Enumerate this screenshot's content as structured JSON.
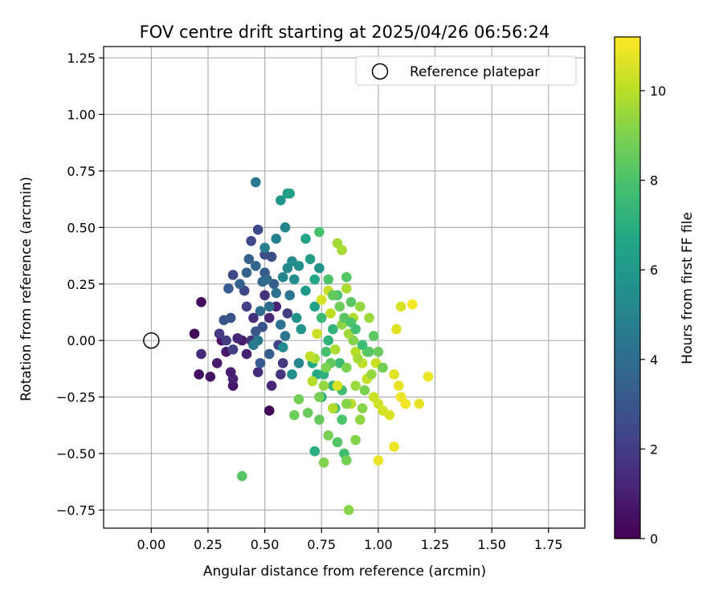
{
  "chart_data": {
    "type": "scatter",
    "title": "FOV centre drift starting at 2025/04/26 06:56:24",
    "xlabel": "Angular distance from reference (arcmin)",
    "ylabel": "Rotation from reference (arcmin)",
    "xlim": [
      -0.21,
      1.91
    ],
    "ylim": [
      -0.83,
      1.3
    ],
    "xticks": [
      0.0,
      0.25,
      0.5,
      0.75,
      1.0,
      1.25,
      1.5,
      1.75
    ],
    "xtick_labels": [
      "0.00",
      "0.25",
      "0.50",
      "0.75",
      "1.00",
      "1.25",
      "1.50",
      "1.75"
    ],
    "yticks": [
      -0.75,
      -0.5,
      -0.25,
      0.0,
      0.25,
      0.5,
      0.75,
      1.0,
      1.25
    ],
    "ytick_labels": [
      "−0.75",
      "−0.50",
      "−0.25",
      "0.00",
      "0.25",
      "0.50",
      "0.75",
      "1.00",
      "1.25"
    ],
    "grid": true,
    "legend": {
      "position": "upper-right",
      "entries": [
        "Reference platepar"
      ]
    },
    "reference_point": {
      "x": 0.0,
      "y": 0.0
    },
    "colorbar": {
      "label": "Hours from first FF file",
      "range": [
        0,
        11.2
      ],
      "ticks": [
        0,
        2,
        4,
        6,
        8,
        10
      ],
      "tick_labels": [
        "0",
        "2",
        "4",
        "6",
        "8",
        "10"
      ],
      "colormap": "viridis"
    },
    "points": [
      [
        0.52,
        -0.31,
        0.1
      ],
      [
        0.19,
        0.03,
        0.2
      ],
      [
        0.22,
        0.17,
        0.3
      ],
      [
        0.21,
        -0.15,
        0.4
      ],
      [
        0.26,
        -0.16,
        0.6
      ],
      [
        0.29,
        -0.1,
        0.8
      ],
      [
        0.31,
        0.0,
        0.5
      ],
      [
        0.33,
        -0.05,
        0.7
      ],
      [
        0.35,
        -0.14,
        0.9
      ],
      [
        0.36,
        -0.2,
        0.6
      ],
      [
        0.4,
        0.0,
        0.8
      ],
      [
        0.42,
        -0.06,
        1.0
      ],
      [
        0.38,
        0.01,
        1.2
      ],
      [
        0.36,
        -0.17,
        1.1
      ],
      [
        0.22,
        -0.06,
        1.3
      ],
      [
        0.47,
        -0.14,
        1.4
      ],
      [
        0.45,
        0.1,
        1.5
      ],
      [
        0.52,
        0.1,
        1.3
      ],
      [
        0.5,
        0.2,
        1.6
      ],
      [
        0.55,
        0.15,
        1.1
      ],
      [
        0.57,
        -0.15,
        1.7
      ],
      [
        0.53,
        -0.2,
        1.2
      ],
      [
        0.44,
        0.0,
        1.8
      ],
      [
        0.3,
        0.03,
        1.9
      ],
      [
        0.33,
        0.0,
        2.0
      ],
      [
        0.36,
        -0.04,
        2.1
      ],
      [
        0.42,
        0.15,
        2.2
      ],
      [
        0.41,
        0.22,
        2.3
      ],
      [
        0.44,
        0.44,
        2.4
      ],
      [
        0.47,
        0.49,
        2.5
      ],
      [
        0.5,
        0.38,
        2.6
      ],
      [
        0.53,
        0.37,
        2.7
      ],
      [
        0.36,
        0.29,
        2.5
      ],
      [
        0.35,
        0.1,
        2.8
      ],
      [
        0.49,
        0.06,
        2.9
      ],
      [
        0.46,
        0.04,
        3.0
      ],
      [
        0.48,
        -0.1,
        3.1
      ],
      [
        0.5,
        0.3,
        3.2
      ],
      [
        0.52,
        -0.06,
        3.3
      ],
      [
        0.54,
        0.25,
        3.4
      ],
      [
        0.56,
        -0.02,
        2.2
      ],
      [
        0.58,
        -0.1,
        1.9
      ],
      [
        0.6,
        0.12,
        2.0
      ],
      [
        0.32,
        0.09,
        3.0
      ],
      [
        0.34,
        0.23,
        3.2
      ],
      [
        0.39,
        0.25,
        3.5
      ],
      [
        0.42,
        0.3,
        3.6
      ],
      [
        0.43,
        0.36,
        3.4
      ],
      [
        0.46,
        0.33,
        3.7
      ],
      [
        0.49,
        0.26,
        3.8
      ],
      [
        0.51,
        0.27,
        3.9
      ],
      [
        0.52,
        0.15,
        4.0
      ],
      [
        0.55,
        0.21,
        4.1
      ],
      [
        0.57,
        0.07,
        4.2
      ],
      [
        0.59,
        0.02,
        4.3
      ],
      [
        0.61,
        0.2,
        4.4
      ],
      [
        0.47,
        0.0,
        4.5
      ],
      [
        0.45,
        -0.02,
        4.6
      ],
      [
        0.48,
        0.13,
        4.0
      ],
      [
        0.5,
        0.41,
        4.7
      ],
      [
        0.46,
        0.7,
        4.5
      ],
      [
        0.55,
        0.45,
        4.8
      ],
      [
        0.59,
        0.5,
        5.0
      ],
      [
        0.58,
        0.28,
        5.1
      ],
      [
        0.6,
        0.32,
        5.2
      ],
      [
        0.62,
        0.35,
        5.3
      ],
      [
        0.63,
        0.27,
        5.4
      ],
      [
        0.65,
        0.33,
        5.5
      ],
      [
        0.64,
        0.1,
        5.6
      ],
      [
        0.66,
        0.05,
        5.8
      ],
      [
        0.68,
        0.22,
        6.0
      ],
      [
        0.7,
        0.36,
        6.2
      ],
      [
        0.72,
        0.15,
        6.4
      ],
      [
        0.57,
        0.62,
        5.9
      ],
      [
        0.6,
        0.65,
        6.1
      ],
      [
        0.61,
        0.65,
        6.3
      ],
      [
        0.68,
        0.45,
        6.5
      ],
      [
        0.72,
        0.27,
        6.6
      ],
      [
        0.74,
        0.32,
        5.7
      ],
      [
        0.62,
        -0.15,
        5.5
      ],
      [
        0.58,
        -0.03,
        5.3
      ],
      [
        0.65,
        -0.1,
        5.0
      ],
      [
        0.71,
        -0.1,
        6.7
      ],
      [
        0.73,
        -0.15,
        6.8
      ],
      [
        0.75,
        -0.25,
        6.9
      ],
      [
        0.72,
        -0.49,
        7.0
      ],
      [
        0.76,
        -0.15,
        7.1
      ],
      [
        0.78,
        0.0,
        7.2
      ],
      [
        0.8,
        0.05,
        7.3
      ],
      [
        0.8,
        -0.2,
        7.4
      ],
      [
        0.81,
        -0.3,
        7.5
      ],
      [
        0.83,
        -0.1,
        7.6
      ],
      [
        0.84,
        -0.22,
        7.7
      ],
      [
        0.85,
        -0.5,
        7.8
      ],
      [
        0.74,
        0.48,
        7.9
      ],
      [
        0.78,
        0.27,
        8.0
      ],
      [
        0.82,
        0.2,
        8.1
      ],
      [
        0.86,
        0.28,
        8.2
      ],
      [
        0.88,
        0.17,
        8.3
      ],
      [
        0.75,
        0.1,
        7.5
      ],
      [
        0.77,
        -0.05,
        7.9
      ],
      [
        0.79,
        -0.1,
        8.4
      ],
      [
        0.74,
        -0.35,
        8.5
      ],
      [
        0.69,
        -0.32,
        8.6
      ],
      [
        0.63,
        -0.33,
        8.7
      ],
      [
        0.65,
        -0.26,
        8.8
      ],
      [
        0.78,
        -0.42,
        8.9
      ],
      [
        0.76,
        -0.54,
        9.0
      ],
      [
        0.4,
        -0.6,
        8.2
      ],
      [
        0.87,
        -0.75,
        9.2
      ],
      [
        0.92,
        -0.35,
        9.3
      ],
      [
        0.92,
        0.15,
        9.4
      ],
      [
        0.96,
        0.1,
        9.5
      ],
      [
        0.82,
        0.43,
        9.6
      ],
      [
        0.84,
        0.4,
        9.7
      ],
      [
        0.86,
        0.23,
        9.8
      ],
      [
        0.89,
        0.1,
        9.9
      ],
      [
        0.9,
        -0.05,
        10.0
      ],
      [
        0.93,
        -0.1,
        10.1
      ],
      [
        0.95,
        -0.17,
        10.2
      ],
      [
        0.98,
        -0.25,
        10.3
      ],
      [
        1.0,
        -0.28,
        10.4
      ],
      [
        1.02,
        -0.31,
        10.5
      ],
      [
        1.05,
        -0.33,
        10.6
      ],
      [
        1.07,
        -0.15,
        10.7
      ],
      [
        1.09,
        -0.2,
        10.8
      ],
      [
        1.1,
        -0.25,
        10.9
      ],
      [
        1.12,
        -0.28,
        11.0
      ],
      [
        1.15,
        0.16,
        11.1
      ],
      [
        1.18,
        -0.28,
        10.8
      ],
      [
        1.22,
        -0.16,
        10.9
      ],
      [
        1.08,
        0.05,
        10.7
      ],
      [
        1.1,
        0.15,
        10.5
      ],
      [
        0.99,
        -0.1,
        10.3
      ],
      [
        1.0,
        -0.53,
        10.9
      ],
      [
        1.07,
        -0.47,
        10.9
      ],
      [
        0.82,
        -0.2,
        10.6
      ],
      [
        0.8,
        -0.3,
        9.9
      ],
      [
        0.86,
        -0.12,
        9.0
      ],
      [
        0.9,
        -0.2,
        9.5
      ],
      [
        0.88,
        -0.28,
        10.0
      ],
      [
        0.93,
        -0.3,
        9.2
      ],
      [
        0.97,
        -0.15,
        9.4
      ],
      [
        0.95,
        -0.05,
        8.8
      ],
      [
        0.91,
        -0.08,
        9.7
      ],
      [
        0.89,
        0.0,
        9.1
      ],
      [
        0.87,
        0.03,
        9.6
      ],
      [
        0.84,
        0.07,
        9.3
      ],
      [
        0.81,
        -0.04,
        9.8
      ],
      [
        0.79,
        0.12,
        10.1
      ],
      [
        0.77,
        -0.12,
        9.0
      ],
      [
        0.76,
        -0.2,
        9.4
      ],
      [
        0.74,
        -0.25,
        8.9
      ],
      [
        0.72,
        -0.08,
        9.7
      ],
      [
        0.71,
        -0.18,
        9.9
      ],
      [
        0.7,
        -0.07,
        10.1
      ],
      [
        0.73,
        0.03,
        10.3
      ],
      [
        0.75,
        0.18,
        10.5
      ],
      [
        0.78,
        0.22,
        10.2
      ],
      [
        0.8,
        0.2,
        8.5
      ],
      [
        0.83,
        0.15,
        8.7
      ],
      [
        0.85,
        0.1,
        8.3
      ],
      [
        0.88,
        0.08,
        8.0
      ],
      [
        0.9,
        0.05,
        7.8
      ],
      [
        0.93,
        -0.02,
        7.6
      ],
      [
        0.96,
        -0.05,
        8.2
      ],
      [
        0.98,
        0.02,
        8.4
      ],
      [
        1.0,
        -0.05,
        8.6
      ],
      [
        1.02,
        -0.12,
        8.8
      ],
      [
        0.94,
        -0.22,
        9.0
      ],
      [
        0.86,
        -0.28,
        9.2
      ],
      [
        0.84,
        -0.35,
        8.0
      ],
      [
        0.82,
        -0.45,
        8.2
      ],
      [
        0.86,
        -0.53,
        8.8
      ],
      [
        0.9,
        -0.44,
        9.1
      ]
    ]
  }
}
